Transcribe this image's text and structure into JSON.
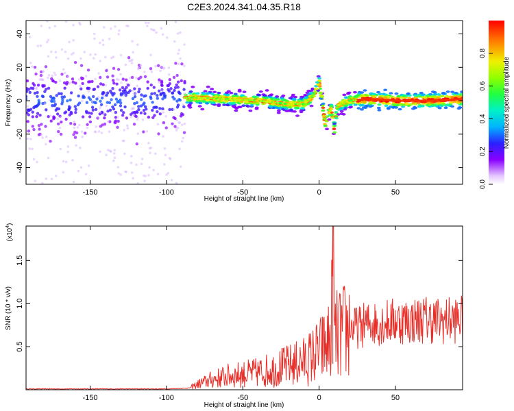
{
  "title": "C2E3.2024.341.04.35.R18",
  "colors": {
    "snr_line": "#e8302a",
    "spectrogram_low": "#8a00ff",
    "spectrogram_high": "#ff0000"
  },
  "chart_data": [
    {
      "type": "heatmap",
      "xlabel": "Height of straight line (km)",
      "ylabel": "Frequency (Hz)",
      "xlim": [
        -192,
        94
      ],
      "ylim": [
        -50,
        48
      ],
      "x_ticks": [
        -150,
        -100,
        -50,
        0,
        50
      ],
      "y_ticks": [
        -40,
        -20,
        0,
        20,
        40
      ],
      "grid": false,
      "ridge": {
        "x": [
          -192,
          -150,
          -100,
          -85,
          -60,
          -40,
          -20,
          -10,
          -5,
          -2,
          0,
          2,
          4,
          6,
          8,
          10,
          12,
          20,
          30,
          50,
          70,
          94
        ],
        "frequency": [
          0,
          0,
          0,
          2,
          1,
          0,
          -2,
          -2,
          2,
          6,
          12,
          0,
          -15,
          -8,
          -5,
          -18,
          -3,
          0,
          1,
          0,
          0,
          1
        ]
      },
      "colorbar": {
        "label": "Normalized spectral amplitude",
        "range": [
          0,
          1
        ],
        "ticks": [
          0.0,
          0.2,
          0.4,
          0.6,
          0.8
        ],
        "tick_labels": [
          "0.0",
          "0.2",
          "0.4",
          "0.6",
          "0.8"
        ],
        "colormap": "rainbow"
      }
    },
    {
      "type": "line",
      "xlabel": "Height of straight line (km)",
      "ylabel": "SNR (10 * v/v)",
      "multiplier_label": "(x10",
      "multiplier_exp": "4",
      "xlim": [
        -192,
        94
      ],
      "ylim": [
        0,
        1.9
      ],
      "x_ticks": [
        -150,
        -100,
        -50,
        0,
        50
      ],
      "y_ticks": [
        0.5,
        1.0,
        1.5
      ],
      "y_tick_labels": [
        "0.5",
        "1.0",
        "1.5"
      ],
      "grid": false,
      "series": [
        {
          "x": [
            -192,
            -150,
            -100,
            -85,
            -80,
            -70,
            -60,
            -50,
            -40,
            -30,
            -20,
            -10,
            -5,
            0,
            5,
            8,
            9,
            10,
            15,
            20,
            25,
            30,
            40,
            50,
            60,
            70,
            80,
            94
          ],
          "values": [
            0.01,
            0.01,
            0.01,
            0.02,
            0.06,
            0.12,
            0.16,
            0.18,
            0.2,
            0.24,
            0.28,
            0.33,
            0.38,
            0.45,
            0.52,
            0.6,
            1.9,
            0.6,
            0.65,
            0.72,
            0.72,
            0.76,
            0.78,
            0.8,
            0.8,
            0.82,
            0.8,
            0.82
          ]
        }
      ]
    }
  ]
}
